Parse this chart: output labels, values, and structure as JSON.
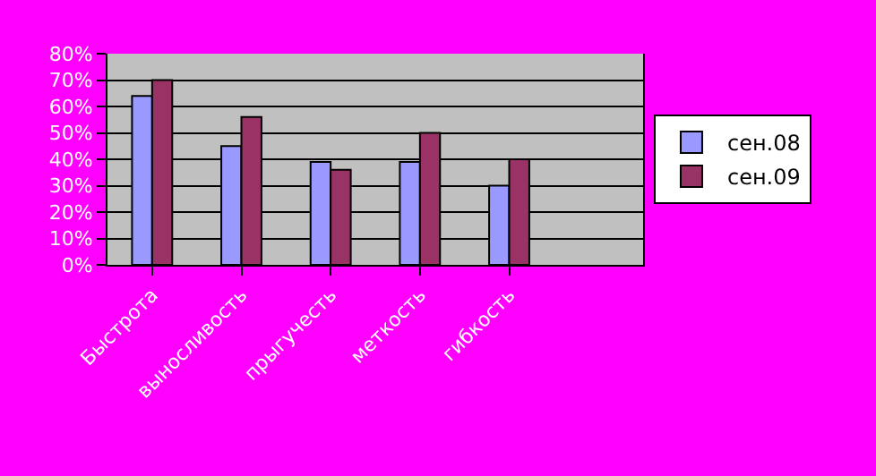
{
  "chart_data": {
    "type": "bar",
    "categories": [
      "Быстрота",
      "выносливость",
      "прыгучесть",
      "меткость",
      "гибкость",
      null
    ],
    "series": [
      {
        "name": "сен.08",
        "color": "#9999ff",
        "values": [
          64,
          45,
          39,
          39,
          30,
          null
        ]
      },
      {
        "name": "сен.09",
        "color": "#993366",
        "values": [
          70,
          56,
          36,
          50,
          40,
          null
        ]
      }
    ],
    "ylim": [
      0,
      80
    ],
    "yticks": [
      {
        "value": 0,
        "label": "0%"
      },
      {
        "value": 10,
        "label": "10%"
      },
      {
        "value": 20,
        "label": "20%"
      },
      {
        "value": 30,
        "label": "30%"
      },
      {
        "value": 40,
        "label": "40%"
      },
      {
        "value": 50,
        "label": "50%"
      },
      {
        "value": 60,
        "label": "60%"
      },
      {
        "value": 70,
        "label": "70%"
      },
      {
        "value": 80,
        "label": "80%"
      }
    ],
    "grid": "y",
    "legend": "right"
  }
}
